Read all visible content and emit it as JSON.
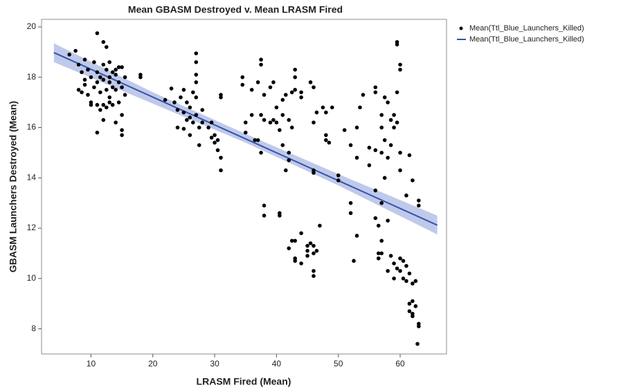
{
  "chart_data": {
    "type": "scatter",
    "title": "Mean GBASM Destroyed v. Mean LRASM Fired",
    "x_label": "LRASM Fired (Mean)",
    "y_label": "GBASM Launchers Destroyed (Mean)",
    "xlim": [
      2,
      67.5
    ],
    "ylim": [
      7,
      20.3
    ],
    "xticks": [
      10,
      20,
      30,
      40,
      50,
      60
    ],
    "yticks": [
      8,
      10,
      12,
      14,
      16,
      18,
      20
    ],
    "legend": "right",
    "series": [
      {
        "name": "Mean(Ttl_Blue_Launchers_Killed)",
        "kind": "points",
        "color": "#000000",
        "x": [
          6.5,
          7.5,
          8,
          8,
          8.5,
          9,
          9,
          9.5,
          9.5,
          10,
          10,
          10.5,
          10.5,
          11,
          11,
          11,
          11,
          11,
          11.5,
          11.5,
          12,
          12,
          12,
          12,
          12,
          12.5,
          12.5,
          12.5,
          12.5,
          13,
          13,
          13,
          13,
          13.5,
          13.5,
          13.5,
          14,
          14,
          14,
          14.5,
          14.5,
          14.5,
          15,
          15,
          15,
          15,
          15,
          15.5,
          15.5,
          9,
          10,
          11.5,
          13,
          14,
          8.5,
          18,
          18,
          22,
          23,
          23.5,
          24,
          24,
          24.5,
          25,
          25,
          25,
          25.5,
          25.5,
          26,
          26,
          26,
          26.5,
          26.5,
          27,
          27,
          27,
          27,
          27,
          27,
          27.5,
          27.5,
          28,
          28,
          29,
          29.5,
          29.5,
          30,
          30,
          30.5,
          30.5,
          31,
          31,
          31,
          31,
          34.5,
          34.5,
          35,
          35,
          36,
          36,
          36.5,
          37,
          37,
          37.5,
          37.5,
          37.5,
          37.5,
          38,
          38,
          38,
          38,
          39,
          39,
          39.5,
          39.5,
          40,
          40,
          40.5,
          40.5,
          40.5,
          41,
          41,
          41,
          41.5,
          41.5,
          42,
          42,
          42,
          42.5,
          42.5,
          43,
          43,
          43,
          44,
          44,
          42,
          42.5,
          43,
          43,
          43,
          44,
          44,
          45,
          45,
          45.5,
          46,
          46,
          46,
          46,
          46.5,
          47,
          45,
          45.5,
          46,
          46,
          46,
          46,
          46.5,
          47.5,
          48,
          48,
          48,
          48.5,
          49,
          50,
          50,
          51,
          52,
          52,
          52,
          52.5,
          53,
          53,
          53,
          53.5,
          54,
          55,
          55,
          56,
          56,
          56,
          56,
          56,
          56.5,
          56.5,
          56.5,
          57,
          57,
          57,
          57,
          57,
          57,
          57.5,
          57.5,
          57.5,
          58,
          58,
          58,
          58,
          58.5,
          58.5,
          58.5,
          59,
          59,
          59,
          59,
          59.5,
          59.5,
          59.5,
          59.5,
          59.5,
          60,
          60,
          60,
          60,
          60,
          60,
          60.5,
          60.5,
          61,
          61,
          61,
          61.5,
          61.5,
          61.5,
          61.5,
          62,
          62,
          62,
          62,
          62,
          62.5,
          62.5,
          63,
          63,
          63,
          63,
          62.8
        ],
        "values": [
          18.9,
          19.05,
          18.5,
          17.5,
          18.2,
          18.7,
          17.9,
          18.3,
          17.3,
          18.0,
          17.0,
          18.6,
          17.6,
          19.75,
          18.2,
          17.8,
          16.9,
          15.8,
          18.0,
          17.4,
          19.4,
          18.5,
          17.9,
          16.9,
          16.3,
          19.2,
          18.3,
          17.5,
          16.8,
          18.6,
          18.0,
          17.2,
          17.8,
          18.2,
          17.6,
          16.9,
          18.3,
          17.5,
          16.2,
          18.4,
          17.8,
          17.0,
          18.4,
          17.6,
          16.5,
          15.9,
          15.7,
          18.0,
          17.3,
          17.7,
          16.9,
          16.7,
          17.0,
          18.1,
          17.4,
          18.1,
          18.0,
          17.1,
          17.55,
          17.0,
          16.7,
          16.0,
          17.2,
          17.5,
          16.6,
          15.95,
          17.0,
          16.3,
          16.8,
          16.4,
          15.7,
          17.4,
          16.2,
          18.95,
          18.6,
          18.1,
          17.8,
          17.2,
          16.5,
          16.0,
          15.3,
          16.7,
          16.2,
          16.0,
          16.2,
          15.6,
          15.7,
          15.4,
          15.5,
          15.1,
          14.8,
          14.3,
          17.3,
          17.2,
          18.0,
          17.7,
          16.2,
          15.8,
          17.5,
          16.5,
          15.5,
          17.8,
          15.5,
          18.7,
          18.5,
          16.5,
          15.0,
          17.3,
          16.3,
          12.9,
          12.5,
          17.6,
          16.2,
          17.8,
          16.3,
          16.8,
          16.2,
          15.9,
          12.6,
          12.5,
          17.1,
          16.5,
          15.3,
          17.3,
          14.3,
          16.3,
          15.0,
          14.7,
          17.4,
          16.0,
          18.3,
          18.0,
          17.5,
          17.4,
          17.2,
          11.2,
          11.5,
          11.5,
          10.8,
          10.7,
          11.8,
          10.6,
          11.3,
          11.1,
          11.4,
          11.3,
          11.0,
          10.3,
          10.1,
          11.1,
          12.1,
          10.9,
          17.8,
          17.6,
          16.2,
          14.3,
          14.2,
          16.6,
          16.8,
          16.6,
          15.7,
          15.5,
          15.4,
          16.8,
          14.1,
          13.9,
          15.9,
          13.0,
          12.6,
          15.3,
          10.7,
          14.8,
          16.0,
          11.7,
          16.8,
          17.3,
          15.2,
          14.5,
          17.6,
          17.4,
          15.1,
          13.5,
          12.4,
          12.1,
          11.0,
          10.8,
          16.5,
          16.0,
          15.0,
          13.0,
          11.5,
          11.0,
          17.2,
          15.5,
          14.0,
          17.0,
          14.8,
          12.3,
          10.3,
          16.3,
          15.3,
          10.9,
          16.5,
          16.0,
          10.6,
          10.0,
          19.4,
          19.3,
          17.4,
          16.2,
          10.4,
          18.5,
          18.3,
          15.0,
          14.3,
          10.8,
          10.3,
          10.7,
          10.0,
          13.3,
          10.5,
          9.9,
          14.9,
          10.2,
          9.0,
          8.7,
          13.9,
          9.8,
          8.6,
          8.5,
          9.1,
          9.9,
          8.9,
          13.1,
          12.9,
          8.2,
          8.1,
          7.4
        ]
      },
      {
        "name": "Mean(Ttl_Blue_Launchers_Killed)",
        "kind": "line",
        "color": "#3552a8",
        "x": [
          4,
          66
        ],
        "values": [
          18.98,
          12.12
        ],
        "band": {
          "color": "#a9b7e3",
          "x": [
            4,
            20,
            35,
            50,
            66
          ],
          "lower": [
            18.6,
            16.95,
            15.4,
            13.7,
            11.75
          ],
          "upper": [
            19.35,
            17.4,
            15.75,
            14.15,
            12.5
          ]
        }
      }
    ]
  }
}
